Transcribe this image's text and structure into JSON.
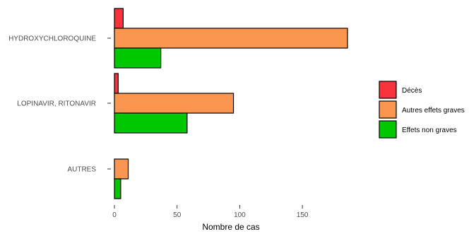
{
  "chart_data": {
    "type": "bar",
    "orientation": "horizontal",
    "categories": [
      "HYDROXYCHLOROQUINE",
      "LOPINAVIR, RITONAVIR",
      "AUTRES"
    ],
    "series": [
      {
        "name": "Décès",
        "color": "#f8333c",
        "values": [
          7,
          3,
          0
        ]
      },
      {
        "name": "Autres effets graves",
        "color": "#fb9650",
        "values": [
          186,
          95,
          11
        ]
      },
      {
        "name": "Effets non graves",
        "color": "#00c800",
        "values": [
          37,
          58,
          5
        ]
      }
    ],
    "xlabel": "Nombre de cas",
    "ylabel": "",
    "xlim": [
      0,
      186
    ],
    "xticks": [
      0,
      50,
      100,
      150
    ],
    "grid": false,
    "legend_position": "right"
  }
}
